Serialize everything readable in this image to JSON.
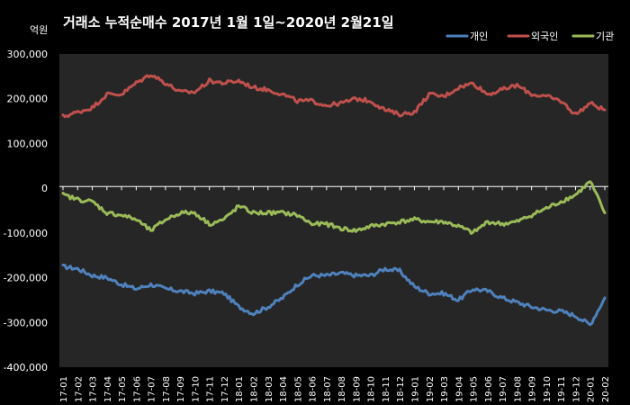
{
  "chart_data": {
    "type": "line",
    "title": "거래소  누적순매수  2017년 1월 1일~2020년 2월21일",
    "unit_label": "억원",
    "ylim": [
      -400000,
      300000
    ],
    "y_ticks": [
      300000,
      200000,
      100000,
      0,
      -100000,
      -200000,
      -300000,
      -400000
    ],
    "y_tick_labels": [
      "300,000",
      "200,000",
      "100,000",
      "0",
      "-100,000",
      "-200,000",
      "-300,000",
      "-400,000"
    ],
    "x": [
      "17-01",
      "17-02",
      "17-03",
      "17-04",
      "17-05",
      "17-06",
      "17-07",
      "17-08",
      "17-09",
      "17-10",
      "17-11",
      "17-12",
      "18-01",
      "18-02",
      "18-03",
      "18-04",
      "18-05",
      "18-06",
      "18-07",
      "18-08",
      "18-09",
      "18-10",
      "18-11",
      "18-12",
      "19-01",
      "19-02",
      "19-03",
      "19-04",
      "19-05",
      "19-06",
      "19-07",
      "19-08",
      "19-09",
      "19-10",
      "19-11",
      "19-12",
      "20-01",
      "20-02"
    ],
    "grid": false,
    "legend": "top-right",
    "series": [
      {
        "name": "개인",
        "color": "#4F81BD",
        "values": [
          -175000,
          -180000,
          -195000,
          -200000,
          -215000,
          -225000,
          -215000,
          -225000,
          -230000,
          -235000,
          -230000,
          -235000,
          -265000,
          -280000,
          -265000,
          -245000,
          -215000,
          -195000,
          -195000,
          -190000,
          -195000,
          -195000,
          -180000,
          -185000,
          -220000,
          -235000,
          -235000,
          -250000,
          -225000,
          -230000,
          -245000,
          -255000,
          -265000,
          -272000,
          -275000,
          -285000,
          -305000,
          -245000
        ]
      },
      {
        "name": "외국인",
        "color": "#C0504D",
        "values": [
          160000,
          170000,
          180000,
          210000,
          210000,
          235000,
          255000,
          235000,
          215000,
          215000,
          240000,
          235000,
          240000,
          225000,
          220000,
          210000,
          195000,
          195000,
          185000,
          190000,
          200000,
          195000,
          175000,
          165000,
          170000,
          210000,
          205000,
          225000,
          235000,
          210000,
          220000,
          230000,
          210000,
          205000,
          195000,
          165000,
          190000,
          175000
        ]
      },
      {
        "name": "기관",
        "color": "#9BBB59",
        "values": [
          -15000,
          -25000,
          -30000,
          -55000,
          -60000,
          -70000,
          -95000,
          -70000,
          -55000,
          -55000,
          -80000,
          -70000,
          -40000,
          -55000,
          -55000,
          -55000,
          -60000,
          -80000,
          -80000,
          -90000,
          -95000,
          -85000,
          -80000,
          -75000,
          -70000,
          -75000,
          -75000,
          -85000,
          -100000,
          -75000,
          -80000,
          -75000,
          -60000,
          -45000,
          -30000,
          -15000,
          15000,
          -55000
        ]
      }
    ]
  }
}
